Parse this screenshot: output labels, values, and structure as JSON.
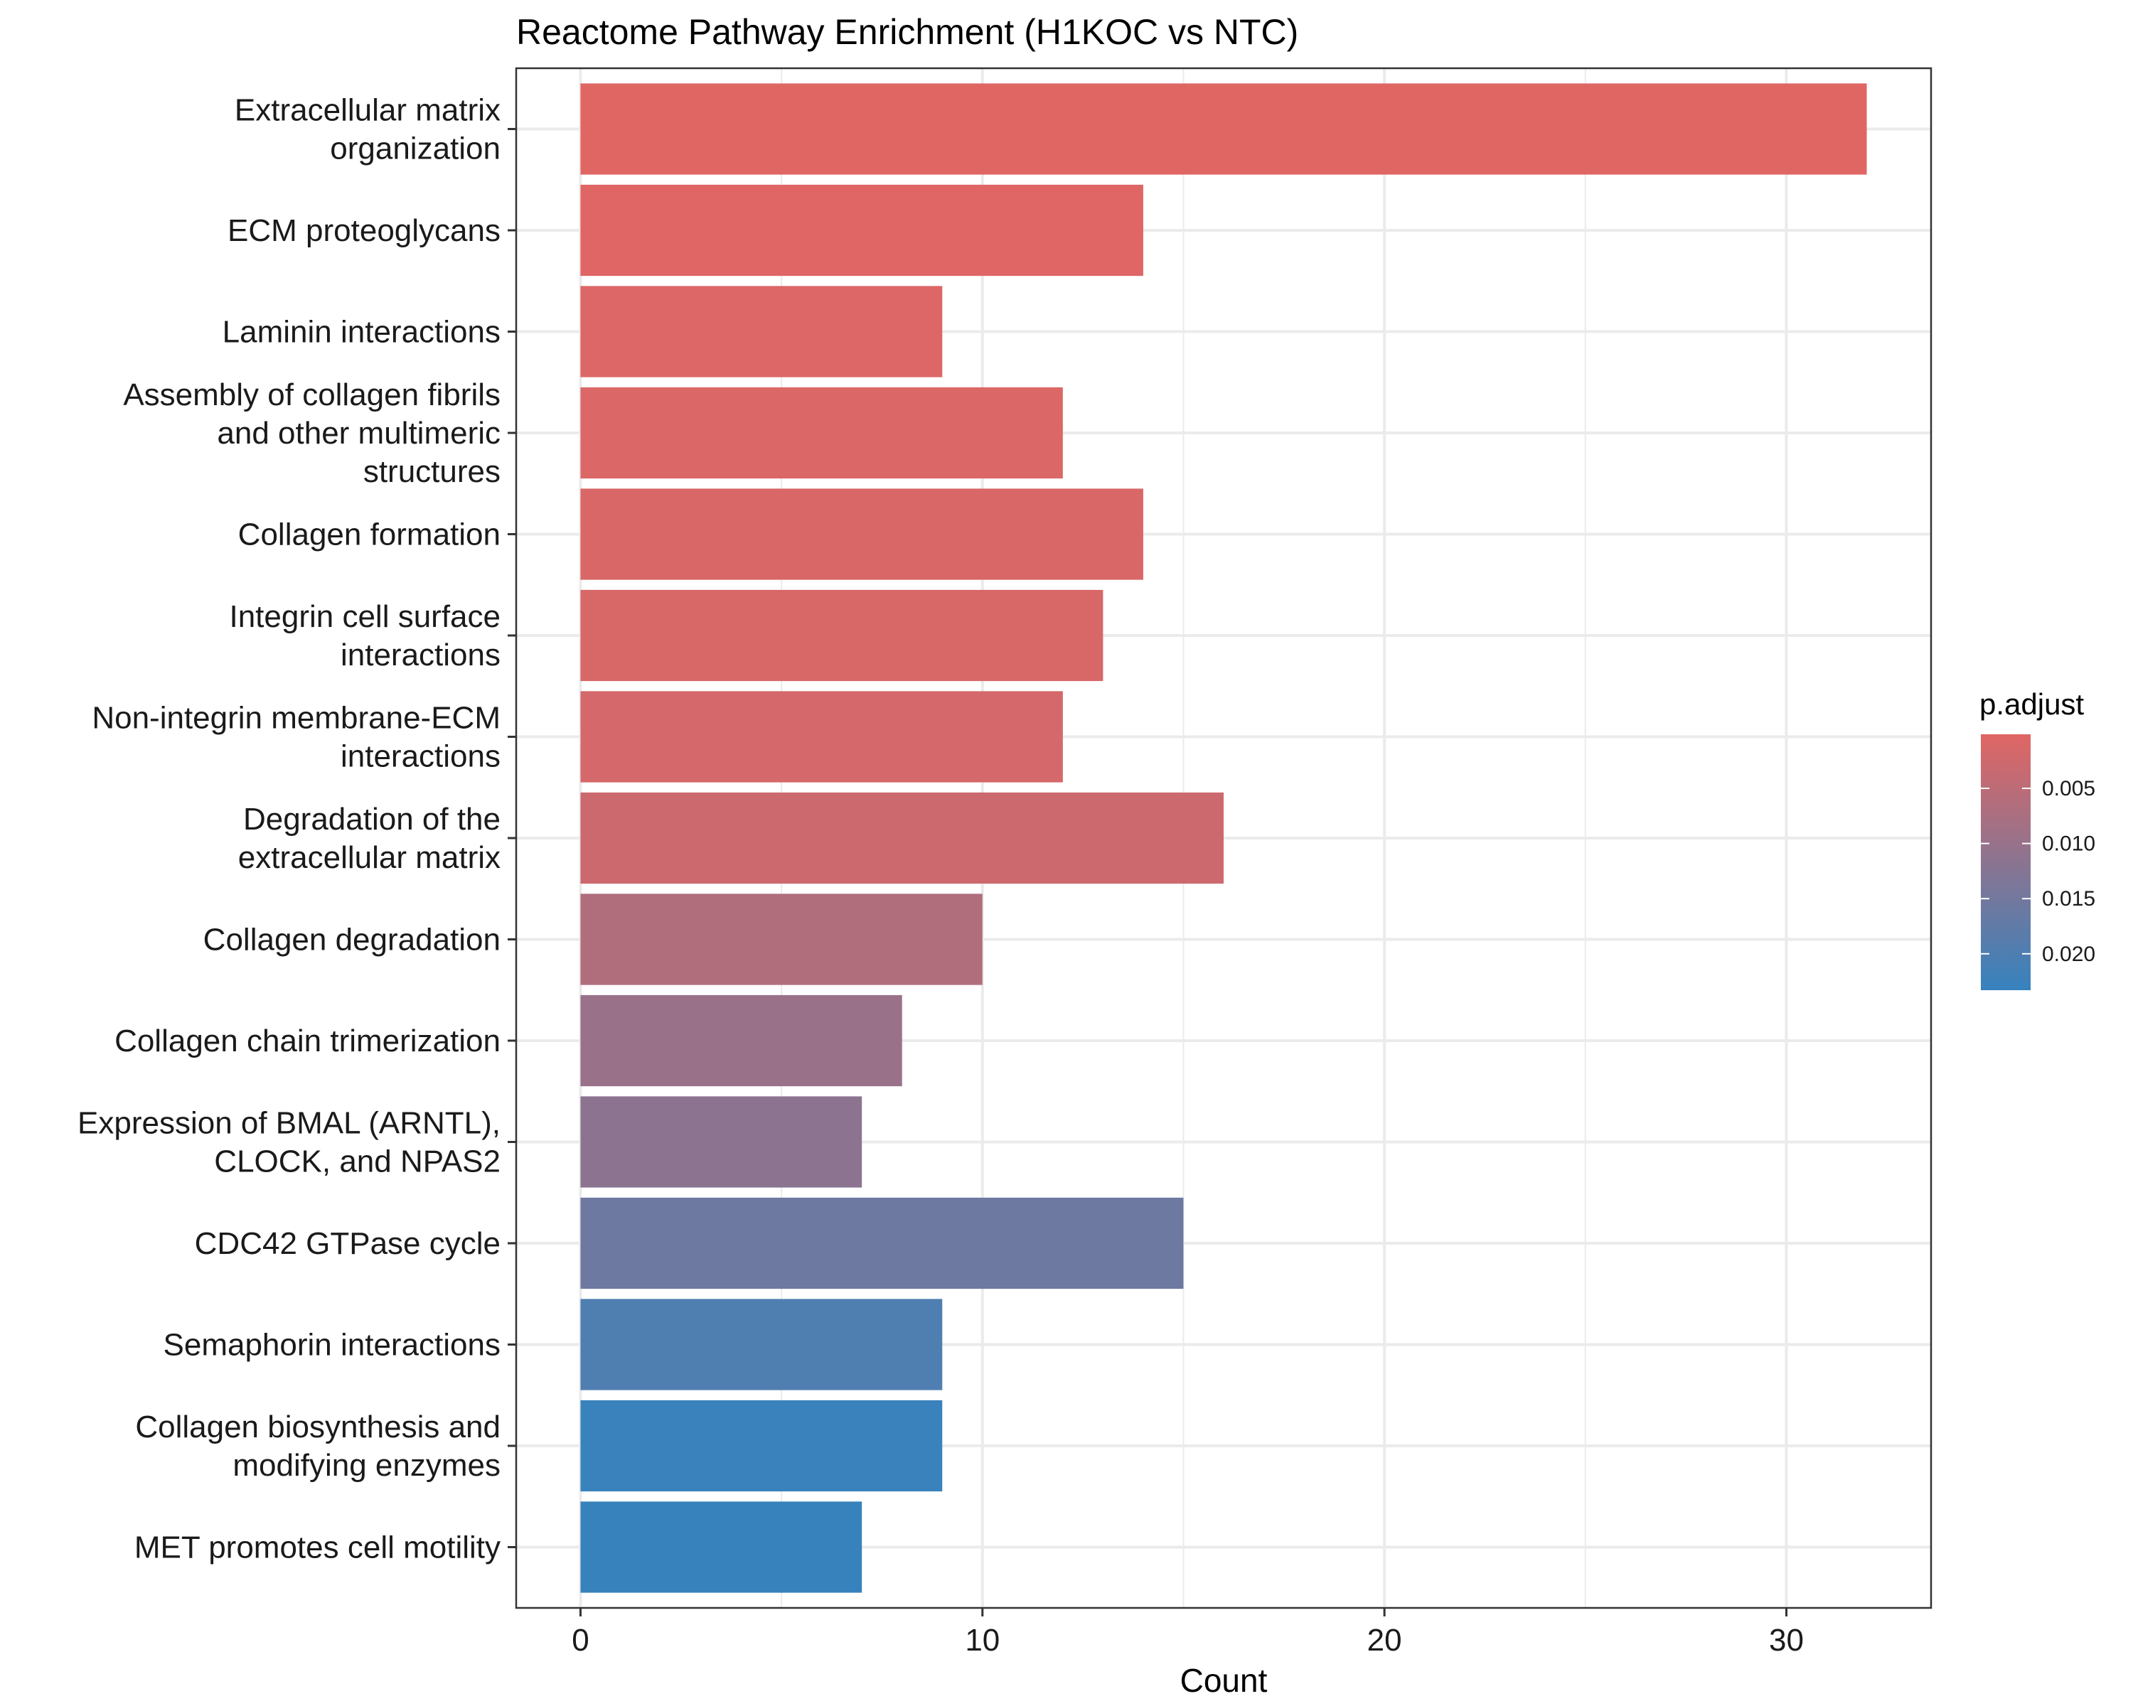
{
  "chart_data": {
    "type": "bar",
    "orientation": "horizontal",
    "title": "Reactome Pathway Enrichment (H1KOC vs NTC)",
    "xlabel": "Count",
    "ylabel": "",
    "xlim": [
      -1.6,
      33.6
    ],
    "xticks": [
      0,
      10,
      20,
      30
    ],
    "grid": true,
    "categories": [
      [
        "Extracellular matrix",
        "organization"
      ],
      [
        "ECM proteoglycans"
      ],
      [
        "Laminin interactions"
      ],
      [
        "Assembly of collagen fibrils",
        "and other multimeric",
        "structures"
      ],
      [
        "Collagen formation"
      ],
      [
        "Integrin cell surface",
        "interactions"
      ],
      [
        "Non-integrin membrane-ECM",
        "interactions"
      ],
      [
        "Degradation of the",
        "extracellular matrix"
      ],
      [
        "Collagen degradation"
      ],
      [
        "Collagen chain trimerization"
      ],
      [
        "Expression of BMAL (ARNTL),",
        "CLOCK, and NPAS2"
      ],
      [
        "CDC42 GTPase cycle"
      ],
      [
        "Semaphorin interactions"
      ],
      [
        "Collagen biosynthesis and",
        "modifying enzymes"
      ],
      [
        "MET promotes cell motility"
      ]
    ],
    "values": [
      32,
      14,
      9,
      12,
      14,
      13,
      12,
      16,
      10,
      8,
      7,
      15,
      9,
      9,
      7
    ],
    "p_adjust": [
      0.0001,
      0.0003,
      0.0005,
      0.0008,
      0.0009,
      0.0012,
      0.0016,
      0.0028,
      0.0066,
      0.0098,
      0.0116,
      0.0157,
      0.0199,
      0.0229,
      0.0231
    ],
    "legend": {
      "title": "p.adjust",
      "placement": "right",
      "range": [
        0.0001,
        0.0233
      ],
      "ticks": [
        0.005,
        0.01,
        0.015,
        0.02
      ],
      "tick_labels": [
        "0.005",
        "0.010",
        "0.015",
        "0.020"
      ],
      "color_low": "#e06664",
      "color_high": "#3682be"
    }
  }
}
